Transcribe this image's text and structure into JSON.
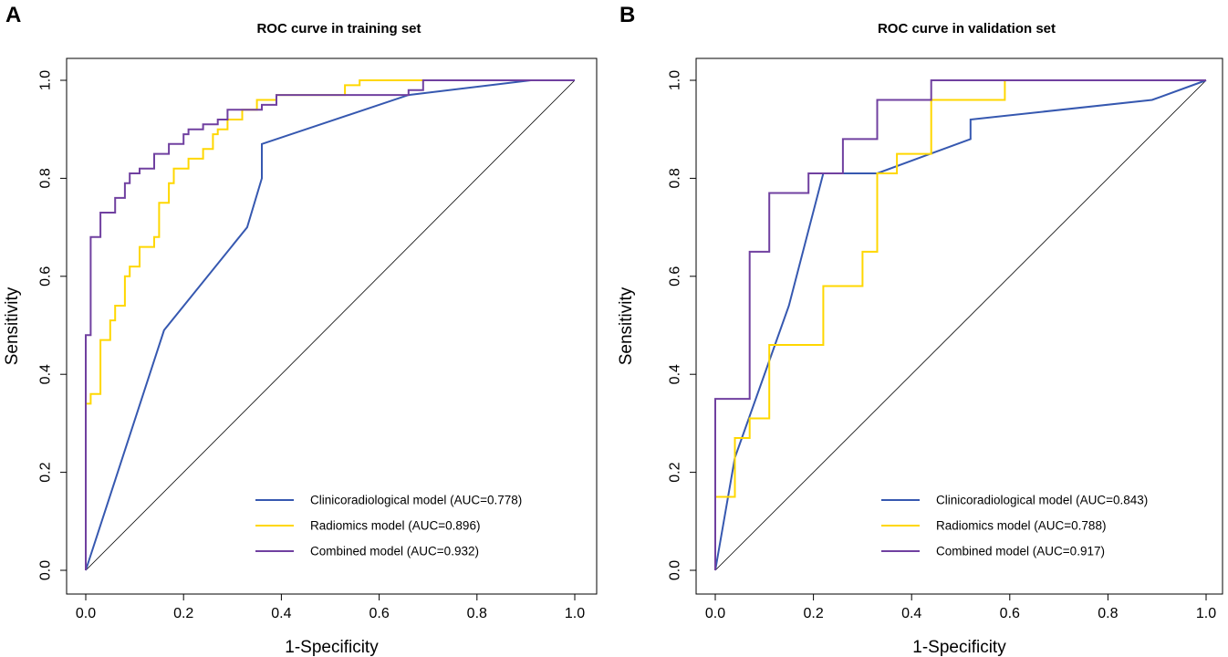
{
  "colors": {
    "clinico": "#3658b0",
    "radiomics": "#ffd700",
    "combined": "#7040a0",
    "axis": "#000000",
    "diagonal": "#000000"
  },
  "chart_data": [
    {
      "type": "line",
      "panel_label": "A",
      "title": "ROC curve in training set",
      "xlabel": "1-Specificity",
      "ylabel": "Sensitivity",
      "xlim": [
        0,
        1
      ],
      "ylim": [
        0,
        1
      ],
      "xticks": [
        "0.0",
        "0.2",
        "0.4",
        "0.6",
        "0.8",
        "1.0"
      ],
      "yticks": [
        "0.0",
        "0.2",
        "0.4",
        "0.6",
        "0.8",
        "1.0"
      ],
      "legend_position": "bottom-right",
      "diagonal": true,
      "series": [
        {
          "name": "Clinicoradiological model (AUC=0.778)",
          "color_key": "clinico",
          "step": false,
          "points": [
            [
              0,
              0
            ],
            [
              0.16,
              0.49
            ],
            [
              0.33,
              0.7
            ],
            [
              0.36,
              0.8
            ],
            [
              0.36,
              0.87
            ],
            [
              0.66,
              0.97
            ],
            [
              0.91,
              1.0
            ],
            [
              1.0,
              1.0
            ]
          ]
        },
        {
          "name": "Radiomics model (AUC=0.896)",
          "color_key": "radiomics",
          "step": true,
          "points": [
            [
              0,
              0
            ],
            [
              0,
              0.34
            ],
            [
              0.01,
              0.34
            ],
            [
              0.01,
              0.36
            ],
            [
              0.03,
              0.36
            ],
            [
              0.03,
              0.47
            ],
            [
              0.05,
              0.47
            ],
            [
              0.05,
              0.51
            ],
            [
              0.06,
              0.51
            ],
            [
              0.06,
              0.54
            ],
            [
              0.08,
              0.54
            ],
            [
              0.08,
              0.6
            ],
            [
              0.09,
              0.6
            ],
            [
              0.09,
              0.62
            ],
            [
              0.11,
              0.62
            ],
            [
              0.11,
              0.66
            ],
            [
              0.14,
              0.66
            ],
            [
              0.14,
              0.68
            ],
            [
              0.15,
              0.68
            ],
            [
              0.15,
              0.75
            ],
            [
              0.17,
              0.75
            ],
            [
              0.17,
              0.79
            ],
            [
              0.18,
              0.79
            ],
            [
              0.18,
              0.82
            ],
            [
              0.21,
              0.82
            ],
            [
              0.21,
              0.84
            ],
            [
              0.24,
              0.84
            ],
            [
              0.24,
              0.86
            ],
            [
              0.26,
              0.86
            ],
            [
              0.26,
              0.89
            ],
            [
              0.27,
              0.89
            ],
            [
              0.27,
              0.9
            ],
            [
              0.29,
              0.9
            ],
            [
              0.29,
              0.92
            ],
            [
              0.32,
              0.92
            ],
            [
              0.32,
              0.94
            ],
            [
              0.35,
              0.94
            ],
            [
              0.35,
              0.96
            ],
            [
              0.39,
              0.96
            ],
            [
              0.39,
              0.97
            ],
            [
              0.53,
              0.97
            ],
            [
              0.53,
              0.99
            ],
            [
              0.56,
              0.99
            ],
            [
              0.56,
              1.0
            ],
            [
              1.0,
              1.0
            ]
          ]
        },
        {
          "name": "Combined model (AUC=0.932)",
          "color_key": "combined",
          "step": true,
          "points": [
            [
              0,
              0
            ],
            [
              0,
              0.48
            ],
            [
              0.01,
              0.48
            ],
            [
              0.01,
              0.68
            ],
            [
              0.03,
              0.68
            ],
            [
              0.03,
              0.73
            ],
            [
              0.06,
              0.73
            ],
            [
              0.06,
              0.76
            ],
            [
              0.08,
              0.76
            ],
            [
              0.08,
              0.79
            ],
            [
              0.09,
              0.79
            ],
            [
              0.09,
              0.81
            ],
            [
              0.11,
              0.81
            ],
            [
              0.11,
              0.82
            ],
            [
              0.14,
              0.82
            ],
            [
              0.14,
              0.85
            ],
            [
              0.17,
              0.85
            ],
            [
              0.17,
              0.87
            ],
            [
              0.2,
              0.87
            ],
            [
              0.2,
              0.89
            ],
            [
              0.21,
              0.89
            ],
            [
              0.21,
              0.9
            ],
            [
              0.24,
              0.9
            ],
            [
              0.24,
              0.91
            ],
            [
              0.27,
              0.91
            ],
            [
              0.27,
              0.92
            ],
            [
              0.29,
              0.92
            ],
            [
              0.29,
              0.94
            ],
            [
              0.36,
              0.94
            ],
            [
              0.36,
              0.95
            ],
            [
              0.39,
              0.95
            ],
            [
              0.39,
              0.97
            ],
            [
              0.66,
              0.97
            ],
            [
              0.66,
              0.98
            ],
            [
              0.69,
              0.98
            ],
            [
              0.69,
              1.0
            ],
            [
              1.0,
              1.0
            ]
          ]
        }
      ]
    },
    {
      "type": "line",
      "panel_label": "B",
      "title": "ROC curve in validation set",
      "xlabel": "1-Specificity",
      "ylabel": "Sensitivity",
      "xlim": [
        0,
        1
      ],
      "ylim": [
        0,
        1
      ],
      "xticks": [
        "0.0",
        "0.2",
        "0.4",
        "0.6",
        "0.8",
        "1.0"
      ],
      "yticks": [
        "0.0",
        "0.2",
        "0.4",
        "0.6",
        "0.8",
        "1.0"
      ],
      "legend_position": "bottom-right",
      "diagonal": true,
      "series": [
        {
          "name": "Clinicoradiological model (AUC=0.843)",
          "color_key": "clinico",
          "step": false,
          "points": [
            [
              0,
              0
            ],
            [
              0.04,
              0.23
            ],
            [
              0.15,
              0.54
            ],
            [
              0.22,
              0.81
            ],
            [
              0.33,
              0.81
            ],
            [
              0.52,
              0.88
            ],
            [
              0.52,
              0.92
            ],
            [
              0.89,
              0.96
            ],
            [
              1.0,
              1.0
            ]
          ]
        },
        {
          "name": "Radiomics model (AUC=0.788)",
          "color_key": "radiomics",
          "step": true,
          "points": [
            [
              0,
              0
            ],
            [
              0,
              0.15
            ],
            [
              0.04,
              0.15
            ],
            [
              0.04,
              0.27
            ],
            [
              0.07,
              0.27
            ],
            [
              0.07,
              0.31
            ],
            [
              0.11,
              0.31
            ],
            [
              0.11,
              0.46
            ],
            [
              0.22,
              0.46
            ],
            [
              0.22,
              0.58
            ],
            [
              0.3,
              0.58
            ],
            [
              0.3,
              0.65
            ],
            [
              0.33,
              0.65
            ],
            [
              0.33,
              0.81
            ],
            [
              0.37,
              0.81
            ],
            [
              0.37,
              0.85
            ],
            [
              0.44,
              0.85
            ],
            [
              0.44,
              0.96
            ],
            [
              0.59,
              0.96
            ],
            [
              0.59,
              1.0
            ],
            [
              1.0,
              1.0
            ]
          ]
        },
        {
          "name": "Combined model (AUC=0.917)",
          "color_key": "combined",
          "step": true,
          "points": [
            [
              0,
              0
            ],
            [
              0,
              0.35
            ],
            [
              0.07,
              0.35
            ],
            [
              0.07,
              0.65
            ],
            [
              0.11,
              0.65
            ],
            [
              0.11,
              0.77
            ],
            [
              0.19,
              0.77
            ],
            [
              0.19,
              0.81
            ],
            [
              0.26,
              0.81
            ],
            [
              0.26,
              0.88
            ],
            [
              0.33,
              0.88
            ],
            [
              0.33,
              0.96
            ],
            [
              0.44,
              0.96
            ],
            [
              0.44,
              1.0
            ],
            [
              1.0,
              1.0
            ]
          ]
        }
      ]
    }
  ]
}
